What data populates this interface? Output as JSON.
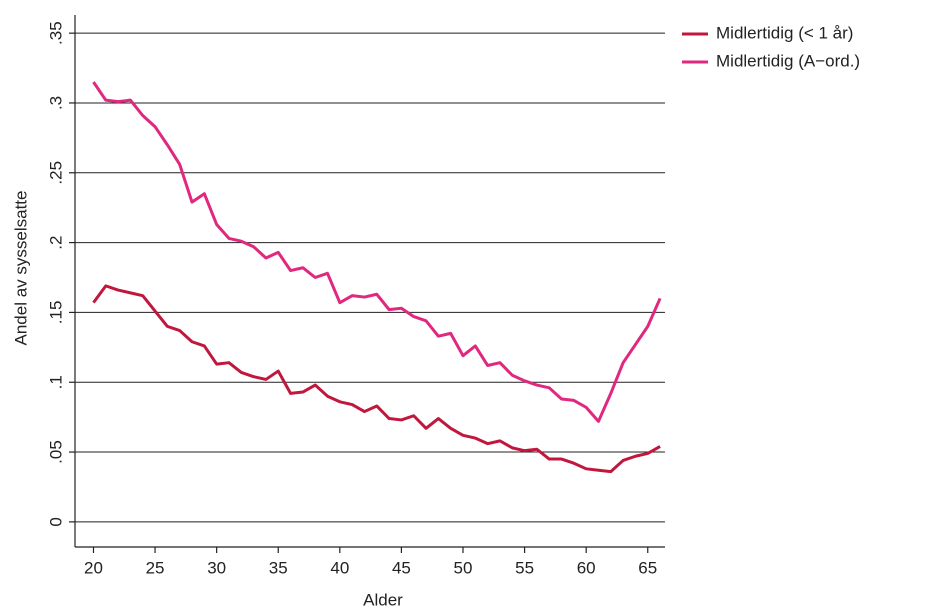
{
  "chart_data": {
    "type": "line",
    "xlabel": "Alder",
    "ylabel": "Andel av sysselsatte",
    "x": [
      20,
      21,
      22,
      23,
      24,
      25,
      26,
      27,
      28,
      29,
      30,
      31,
      32,
      33,
      34,
      35,
      36,
      37,
      38,
      39,
      40,
      41,
      42,
      43,
      44,
      45,
      46,
      47,
      48,
      49,
      50,
      51,
      52,
      53,
      54,
      55,
      56,
      57,
      58,
      59,
      60,
      61,
      62,
      63,
      64,
      65,
      66
    ],
    "series": [
      {
        "name": "Midlertidig (< 1 år)",
        "color": "#c1173d",
        "values": [
          0.157,
          0.169,
          0.166,
          0.164,
          0.162,
          0.151,
          0.14,
          0.137,
          0.129,
          0.126,
          0.113,
          0.114,
          0.107,
          0.104,
          0.102,
          0.108,
          0.092,
          0.093,
          0.098,
          0.09,
          0.086,
          0.084,
          0.079,
          0.083,
          0.074,
          0.073,
          0.076,
          0.067,
          0.074,
          0.067,
          0.062,
          0.06,
          0.056,
          0.058,
          0.053,
          0.051,
          0.052,
          0.045,
          0.045,
          0.042,
          0.038,
          0.037,
          0.036,
          0.044,
          0.047,
          0.049,
          0.054
        ]
      },
      {
        "name": "Midlertidig (A−ord.)",
        "color": "#e0287f",
        "values": [
          0.315,
          0.302,
          0.301,
          0.302,
          0.291,
          0.283,
          0.27,
          0.256,
          0.229,
          0.235,
          0.213,
          0.203,
          0.201,
          0.197,
          0.189,
          0.193,
          0.18,
          0.182,
          0.175,
          0.178,
          0.157,
          0.162,
          0.161,
          0.163,
          0.152,
          0.153,
          0.147,
          0.144,
          0.133,
          0.135,
          0.119,
          0.126,
          0.112,
          0.114,
          0.105,
          0.101,
          0.098,
          0.096,
          0.088,
          0.087,
          0.082,
          0.072,
          0.092,
          0.114,
          0.127,
          0.14,
          0.16
        ]
      }
    ],
    "xlim": [
      18.5,
      66.4
    ],
    "xticks": [
      20,
      25,
      30,
      35,
      40,
      45,
      50,
      55,
      60,
      65
    ],
    "ylim": [
      -0.018,
      0.363
    ],
    "yticks": [
      0,
      {
        "value": 0.05,
        "label": ".05"
      },
      {
        "value": 0.1,
        "label": ".1"
      },
      {
        "value": 0.15,
        "label": ".15"
      },
      {
        "value": 0.2,
        "label": ".2"
      },
      {
        "value": 0.25,
        "label": ".25"
      },
      {
        "value": 0.3,
        "label": ".3"
      },
      {
        "value": 0.35,
        "label": ".35"
      }
    ],
    "grid": true,
    "legend": "outside-top-right"
  }
}
